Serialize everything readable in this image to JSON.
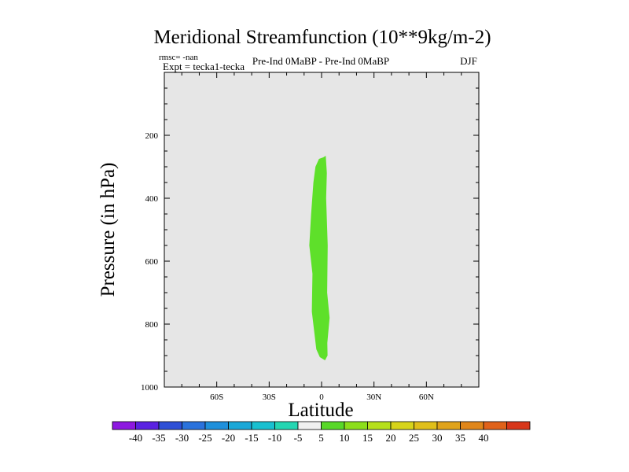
{
  "chart_data": {
    "type": "contour",
    "title": "Meridional Streamfunction (10**9kg/m-2)",
    "rmsc_label": "rmsc= -nan",
    "expt_label": "Expt = tecka1-tecka",
    "subtitle": "Pre-Ind 0MaBP - Pre-Ind 0MaBP",
    "season": "DJF",
    "xlabel": "Latitude",
    "ylabel": "Pressure (in hPa)",
    "xlim": [
      -90,
      90
    ],
    "ylim": [
      1000,
      0
    ],
    "x_ticks": [
      {
        "value": -60,
        "label": "60S"
      },
      {
        "value": -30,
        "label": "30S"
      },
      {
        "value": 0,
        "label": "0"
      },
      {
        "value": 30,
        "label": "30N"
      },
      {
        "value": 60,
        "label": "60N"
      }
    ],
    "y_ticks": [
      {
        "value": 200,
        "label": "200"
      },
      {
        "value": 400,
        "label": "400"
      },
      {
        "value": 600,
        "label": "600"
      },
      {
        "value": 800,
        "label": "800"
      },
      {
        "value": 1000,
        "label": "1000"
      }
    ],
    "background_color": "#e6e6e6",
    "filled_region": {
      "value_range": "5 to 10",
      "color": "#5ee02a",
      "outline": [
        [
          1,
          270
        ],
        [
          2.4,
          265
        ],
        [
          3,
          320
        ],
        [
          2.6,
          400
        ],
        [
          3.5,
          550
        ],
        [
          3.2,
          700
        ],
        [
          4.6,
          780
        ],
        [
          3.3,
          860
        ],
        [
          3.4,
          900
        ],
        [
          2,
          915
        ],
        [
          -1,
          905
        ],
        [
          -3,
          880
        ],
        [
          -5.6,
          760
        ],
        [
          -5.2,
          640
        ],
        [
          -7,
          550
        ],
        [
          -6,
          450
        ],
        [
          -4.7,
          350
        ],
        [
          -3.5,
          300
        ],
        [
          -1.5,
          275
        ]
      ]
    },
    "colorbar": {
      "colors": [
        "#8d18e0",
        "#5a22e2",
        "#2e4fd6",
        "#2a72dc",
        "#1f90db",
        "#1aa8d8",
        "#19c0d0",
        "#24d6b2",
        "#f0f0f0",
        "#58d828",
        "#8cde1a",
        "#b6e01a",
        "#d7d41a",
        "#e0bf1a",
        "#e0a31a",
        "#e0861a",
        "#e0621a",
        "#d8361a"
      ],
      "labels": [
        "-40",
        "-35",
        "-30",
        "-25",
        "-20",
        "-15",
        "-10",
        "-5",
        "5",
        "10",
        "15",
        "20",
        "25",
        "30",
        "35",
        "40"
      ]
    }
  }
}
